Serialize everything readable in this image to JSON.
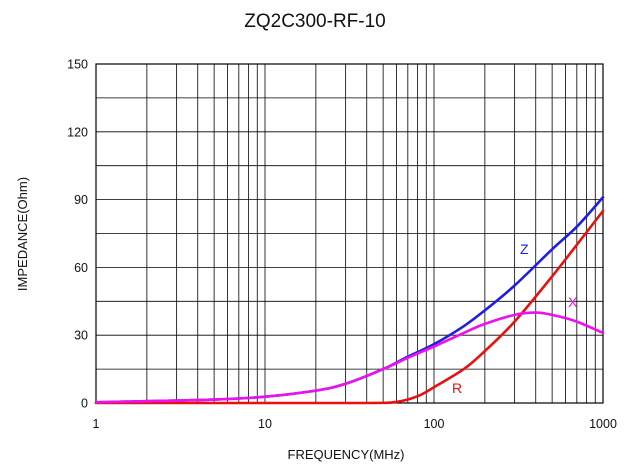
{
  "chart_data": {
    "type": "line",
    "title": "ZQ2C300-RF-10",
    "xlabel": "FREQUENCY(MHz)",
    "ylabel": "IMPEDANCE(Ohm)",
    "xscale": "log",
    "xlim": [
      1,
      1000
    ],
    "ylim": [
      0,
      150
    ],
    "x_ticks": [
      1,
      10,
      100,
      1000
    ],
    "x_tick_labels": [
      "1",
      "10",
      "100",
      "1000"
    ],
    "y_ticks": [
      0,
      30,
      60,
      90,
      120,
      150
    ],
    "y_tick_labels": [
      "0",
      "30",
      "60",
      "90",
      "120",
      "150"
    ],
    "grid": true,
    "legend": "inline-labels",
    "series": [
      {
        "name": "Z",
        "color": "#1f1fe0",
        "x": [
          1,
          2,
          5,
          10,
          20,
          30,
          50,
          70,
          100,
          150,
          200,
          300,
          500,
          700,
          1000
        ],
        "y": [
          0.3,
          0.8,
          1.5,
          2.8,
          5.5,
          8.5,
          15,
          20.5,
          26,
          34,
          41,
          52,
          68,
          78,
          91
        ]
      },
      {
        "name": "R",
        "color": "#e81010",
        "x": [
          1,
          10,
          40,
          60,
          80,
          100,
          150,
          200,
          300,
          500,
          700,
          1000
        ],
        "y": [
          0,
          0,
          0,
          0.5,
          3,
          7,
          15,
          23,
          36,
          56,
          70,
          85
        ]
      },
      {
        "name": "X",
        "color": "#ee10ee",
        "x": [
          1,
          2,
          5,
          10,
          20,
          30,
          50,
          70,
          100,
          150,
          200,
          300,
          400,
          500,
          700,
          1000
        ],
        "y": [
          0.3,
          0.8,
          1.5,
          2.8,
          5.5,
          8.5,
          15,
          20,
          25,
          31,
          35,
          39,
          40,
          39,
          36,
          31
        ]
      }
    ]
  }
}
